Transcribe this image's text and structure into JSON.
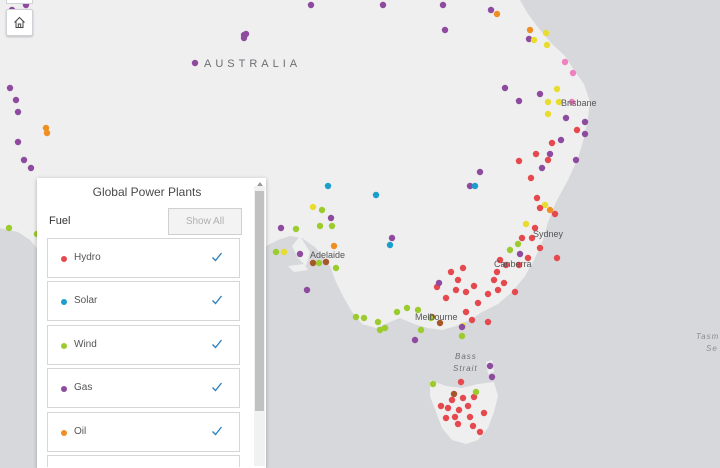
{
  "map": {
    "labels": {
      "australia": "AUSTRALIA",
      "brisbane": "Brisbane",
      "sydney": "Sydney",
      "canberra": "Canberra",
      "melbourne": "Melbourne",
      "adelaide": "Adelaide",
      "bass_strait_1": "Bass",
      "bass_strait_2": "Strait",
      "tasman_1": "Tasm",
      "tasman_2": "Se"
    },
    "colors": {
      "sea": "#d6d8db",
      "land": "#efefef",
      "hydro": "#e5484d",
      "solar": "#1a9ecb",
      "wind": "#9ccb2e",
      "gas": "#8e4a9e",
      "oil": "#f08e22",
      "coal": "#a65628",
      "nuclear": "#e8dd2e",
      "other": "#f080c0"
    }
  },
  "home_button": {
    "icon": "home-icon"
  },
  "panel": {
    "title": "Global Power Plants",
    "fuel_label": "Fuel",
    "show_all": "Show All",
    "items": [
      {
        "label": "Hydro",
        "color": "#e5484d",
        "checked": true
      },
      {
        "label": "Solar",
        "color": "#1a9ecb",
        "checked": true
      },
      {
        "label": "Wind",
        "color": "#9ccb2e",
        "checked": true
      },
      {
        "label": "Gas",
        "color": "#8e4a9e",
        "checked": true
      },
      {
        "label": "Oil",
        "color": "#f08e22",
        "checked": true
      },
      {
        "label": "",
        "color": "",
        "checked": true
      }
    ]
  }
}
